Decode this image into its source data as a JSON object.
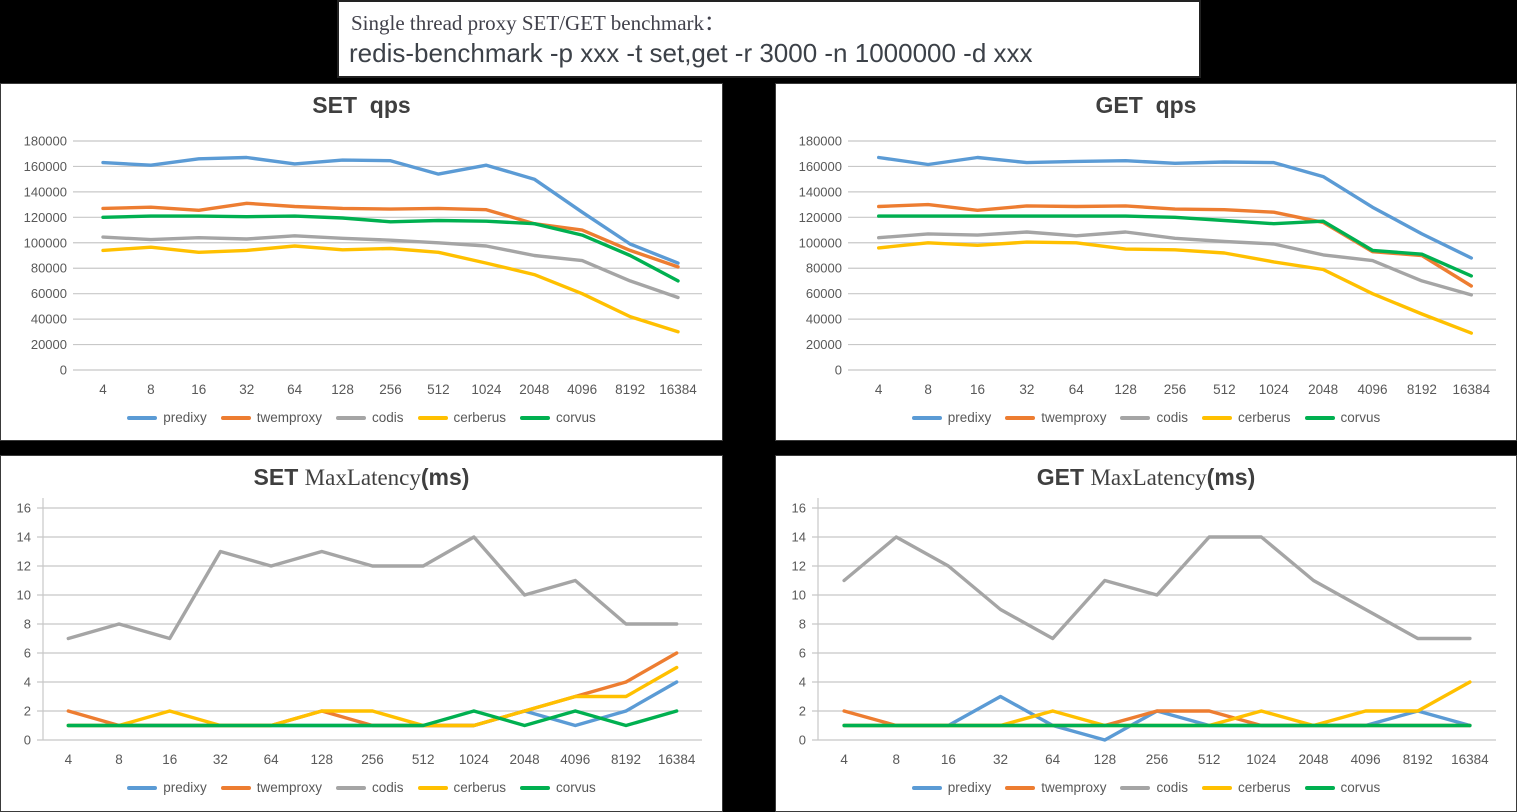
{
  "title_box": {
    "line1": "Single thread proxy SET/GET benchmark：",
    "line2": "redis-benchmark -p xxx -t set,get -r 3000 -n 1000000 -d xxx"
  },
  "palette": {
    "predixy": "#5B9BD5",
    "twemproxy": "#ED7D31",
    "codis": "#A5A5A5",
    "cerberus": "#FFC000",
    "corvus": "#00B050",
    "gridline": "#C8C8C8",
    "tick_text": "#595959",
    "title_text": "#3F3F3F"
  },
  "chart_data": [
    {
      "id": "set-qps",
      "type": "line",
      "kind": "qps",
      "title_segments": [
        {
          "text": "SET  qps",
          "style": "bold"
        }
      ],
      "xlabel": "",
      "ylabel": "",
      "ylim": [
        0,
        180000
      ],
      "yticks": [
        "180000",
        "160000",
        "140000",
        "120000",
        "100000",
        "80000",
        "60000",
        "40000",
        "20000",
        "0"
      ],
      "grid": true,
      "legend_position": "bottom",
      "categories": [
        "4",
        "8",
        "16",
        "32",
        "64",
        "128",
        "256",
        "512",
        "1024",
        "2048",
        "4096",
        "8192",
        "16384"
      ],
      "series": [
        {
          "name": "predixy",
          "values": [
            163000,
            161000,
            166000,
            167000,
            162000,
            165000,
            164500,
            154000,
            161000,
            150000,
            124000,
            99000,
            84000
          ]
        },
        {
          "name": "twemproxy",
          "values": [
            127000,
            128000,
            125500,
            131000,
            128500,
            127000,
            126500,
            127000,
            126000,
            115000,
            110000,
            94000,
            81000
          ]
        },
        {
          "name": "codis",
          "values": [
            104500,
            102500,
            104000,
            103000,
            105500,
            103500,
            102000,
            100000,
            97500,
            90000,
            86000,
            70000,
            57000
          ]
        },
        {
          "name": "cerberus",
          "values": [
            94000,
            96500,
            92500,
            94000,
            97500,
            94500,
            95500,
            92500,
            84000,
            75000,
            60000,
            42000,
            30000
          ]
        },
        {
          "name": "corvus",
          "values": [
            120000,
            121000,
            121000,
            120500,
            121000,
            119500,
            116500,
            117500,
            117000,
            115000,
            106000,
            90000,
            70000
          ]
        }
      ]
    },
    {
      "id": "get-qps",
      "type": "line",
      "kind": "qps",
      "title_segments": [
        {
          "text": "GET  qps",
          "style": "bold"
        }
      ],
      "xlabel": "",
      "ylabel": "",
      "ylim": [
        0,
        180000
      ],
      "yticks": [
        "180000",
        "160000",
        "140000",
        "120000",
        "100000",
        "80000",
        "60000",
        "40000",
        "20000",
        "0"
      ],
      "grid": true,
      "legend_position": "bottom",
      "categories": [
        "4",
        "8",
        "16",
        "32",
        "64",
        "128",
        "256",
        "512",
        "1024",
        "2048",
        "4096",
        "8192",
        "16384"
      ],
      "series": [
        {
          "name": "predixy",
          "values": [
            167000,
            161500,
            167000,
            163000,
            164000,
            164500,
            162500,
            163500,
            163000,
            152000,
            128000,
            107000,
            88000
          ]
        },
        {
          "name": "twemproxy",
          "values": [
            128500,
            130000,
            125500,
            129000,
            128500,
            129000,
            126500,
            126000,
            124000,
            116000,
            93000,
            90000,
            66000
          ]
        },
        {
          "name": "codis",
          "values": [
            104000,
            107000,
            106000,
            108500,
            105500,
            108500,
            103500,
            101000,
            99000,
            90500,
            86000,
            70000,
            59000
          ]
        },
        {
          "name": "cerberus",
          "values": [
            96000,
            100000,
            98000,
            100500,
            100000,
            95000,
            94500,
            92000,
            85000,
            79000,
            60000,
            44000,
            29000
          ]
        },
        {
          "name": "corvus",
          "values": [
            121000,
            121000,
            121000,
            121000,
            121000,
            121000,
            120000,
            117500,
            115000,
            117000,
            94000,
            91000,
            74000
          ]
        }
      ]
    },
    {
      "id": "set-maxlatency",
      "type": "line",
      "kind": "latency",
      "title_segments": [
        {
          "text": "SET ",
          "style": "bold"
        },
        {
          "text": "MaxLatency",
          "style": "serif"
        },
        {
          "text": "(ms)",
          "style": "bold"
        }
      ],
      "xlabel": "",
      "ylabel": "",
      "ylim": [
        0,
        16
      ],
      "yticks": [
        "16",
        "14",
        "12",
        "10",
        "8",
        "6",
        "4",
        "2",
        "0"
      ],
      "grid": true,
      "legend_position": "bottom",
      "categories": [
        "4",
        "8",
        "16",
        "32",
        "64",
        "128",
        "256",
        "512",
        "1024",
        "2048",
        "4096",
        "8192",
        "16384"
      ],
      "series": [
        {
          "name": "predixy",
          "values": [
            1,
            1,
            1,
            1,
            1,
            1,
            1,
            1,
            1,
            2,
            1,
            2,
            4
          ]
        },
        {
          "name": "twemproxy",
          "values": [
            2,
            1,
            1,
            1,
            1,
            2,
            1,
            1,
            1,
            2,
            3,
            4,
            6
          ]
        },
        {
          "name": "codis",
          "values": [
            7,
            8,
            7,
            13,
            12,
            13,
            12,
            12,
            14,
            10,
            11,
            8,
            8
          ]
        },
        {
          "name": "cerberus",
          "values": [
            1,
            1,
            2,
            1,
            1,
            2,
            2,
            1,
            1,
            2,
            3,
            3,
            5
          ]
        },
        {
          "name": "corvus",
          "values": [
            1,
            1,
            1,
            1,
            1,
            1,
            1,
            1,
            2,
            1,
            2,
            1,
            2
          ]
        }
      ]
    },
    {
      "id": "get-maxlatency",
      "type": "line",
      "kind": "latency",
      "title_segments": [
        {
          "text": "GET ",
          "style": "bold"
        },
        {
          "text": "MaxLatency",
          "style": "serif"
        },
        {
          "text": "(ms)",
          "style": "bold"
        }
      ],
      "xlabel": "",
      "ylabel": "",
      "ylim": [
        0,
        16
      ],
      "yticks": [
        "16",
        "14",
        "12",
        "10",
        "8",
        "6",
        "4",
        "2",
        "0"
      ],
      "grid": true,
      "legend_position": "bottom",
      "categories": [
        "4",
        "8",
        "16",
        "32",
        "64",
        "128",
        "256",
        "512",
        "1024",
        "2048",
        "4096",
        "8192",
        "16384"
      ],
      "series": [
        {
          "name": "predixy",
          "values": [
            1,
            1,
            1,
            3,
            1,
            0,
            2,
            1,
            1,
            1,
            1,
            2,
            1
          ]
        },
        {
          "name": "twemproxy",
          "values": [
            2,
            1,
            1,
            1,
            1,
            1,
            2,
            2,
            1,
            1,
            1,
            1,
            1
          ]
        },
        {
          "name": "codis",
          "values": [
            11,
            14,
            12,
            9,
            7,
            11,
            10,
            14,
            14,
            11,
            9,
            7,
            7
          ]
        },
        {
          "name": "cerberus",
          "values": [
            1,
            1,
            1,
            1,
            2,
            1,
            1,
            1,
            2,
            1,
            2,
            2,
            4
          ]
        },
        {
          "name": "corvus",
          "values": [
            1,
            1,
            1,
            1,
            1,
            1,
            1,
            1,
            1,
            1,
            1,
            1,
            1
          ]
        }
      ]
    }
  ]
}
